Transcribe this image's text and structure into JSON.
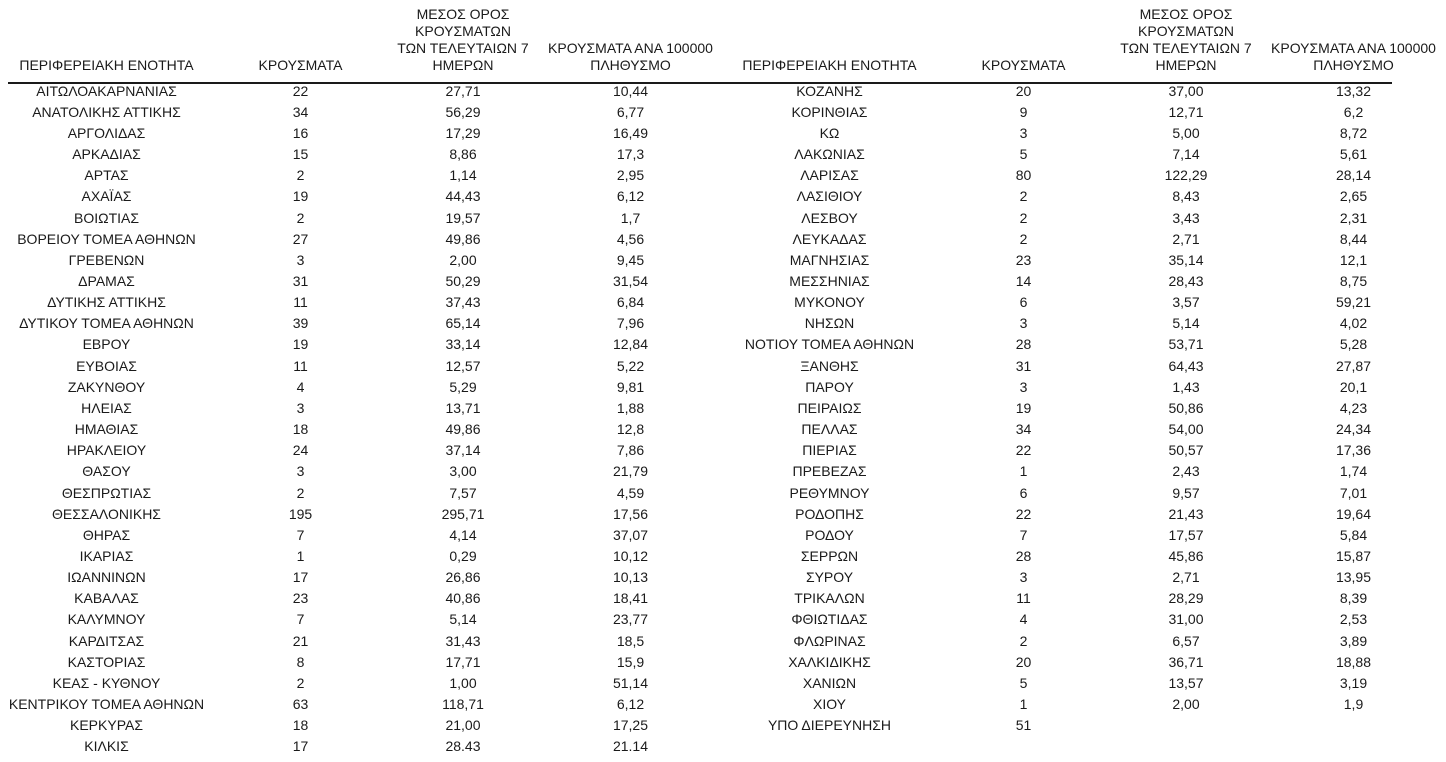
{
  "left_table": {
    "headers": [
      "ΠΕΡΙΦΕΡΕΙΑΚΗ ΕΝΟΤΗΤΑ",
      "ΚΡΟΥΣΜΑΤΑ",
      "ΜΕΣΟΣ ΟΡΟΣ ΚΡΟΥΣΜΑΤΩΝ\nΤΩΝ ΤΕΛΕΥΤΑΙΩΝ 7\nΗΜΕΡΩΝ",
      "ΚΡΟΥΣΜΑΤΑ ΑΝΑ 100000\nΠΛΗΘΥΣΜΟ"
    ],
    "rows": [
      [
        "ΑΙΤΩΛΟΑΚΑΡΝΑΝΙΑΣ",
        "22",
        "27,71",
        "10,44"
      ],
      [
        "ΑΝΑΤΟΛΙΚΗΣ ΑΤΤΙΚΗΣ",
        "34",
        "56,29",
        "6,77"
      ],
      [
        "ΑΡΓΟΛΙΔΑΣ",
        "16",
        "17,29",
        "16,49"
      ],
      [
        "ΑΡΚΑΔΙΑΣ",
        "15",
        "8,86",
        "17,3"
      ],
      [
        "ΑΡΤΑΣ",
        "2",
        "1,14",
        "2,95"
      ],
      [
        "ΑΧΑΪΑΣ",
        "19",
        "44,43",
        "6,12"
      ],
      [
        "ΒΟΙΩΤΙΑΣ",
        "2",
        "19,57",
        "1,7"
      ],
      [
        "ΒΟΡΕΙΟΥ ΤΟΜΕΑ ΑΘΗΝΩΝ",
        "27",
        "49,86",
        "4,56"
      ],
      [
        "ΓΡΕΒΕΝΩΝ",
        "3",
        "2,00",
        "9,45"
      ],
      [
        "ΔΡΑΜΑΣ",
        "31",
        "50,29",
        "31,54"
      ],
      [
        "ΔΥΤΙΚΗΣ ΑΤΤΙΚΗΣ",
        "11",
        "37,43",
        "6,84"
      ],
      [
        "ΔΥΤΙΚΟΥ ΤΟΜΕΑ ΑΘΗΝΩΝ",
        "39",
        "65,14",
        "7,96"
      ],
      [
        "ΕΒΡΟΥ",
        "19",
        "33,14",
        "12,84"
      ],
      [
        "ΕΥΒΟΙΑΣ",
        "11",
        "12,57",
        "5,22"
      ],
      [
        "ΖΑΚΥΝΘΟΥ",
        "4",
        "5,29",
        "9,81"
      ],
      [
        "ΗΛΕΙΑΣ",
        "3",
        "13,71",
        "1,88"
      ],
      [
        "ΗΜΑΘΙΑΣ",
        "18",
        "49,86",
        "12,8"
      ],
      [
        "ΗΡΑΚΛΕΙΟΥ",
        "24",
        "37,14",
        "7,86"
      ],
      [
        "ΘΑΣΟΥ",
        "3",
        "3,00",
        "21,79"
      ],
      [
        "ΘΕΣΠΡΩΤΙΑΣ",
        "2",
        "7,57",
        "4,59"
      ],
      [
        "ΘΕΣΣΑΛΟΝΙΚΗΣ",
        "195",
        "295,71",
        "17,56"
      ],
      [
        "ΘΗΡΑΣ",
        "7",
        "4,14",
        "37,07"
      ],
      [
        "ΙΚΑΡΙΑΣ",
        "1",
        "0,29",
        "10,12"
      ],
      [
        "ΙΩΑΝΝΙΝΩΝ",
        "17",
        "26,86",
        "10,13"
      ],
      [
        "ΚΑΒΑΛΑΣ",
        "23",
        "40,86",
        "18,41"
      ],
      [
        "ΚΑΛΥΜΝΟΥ",
        "7",
        "5,14",
        "23,77"
      ],
      [
        "ΚΑΡΔΙΤΣΑΣ",
        "21",
        "31,43",
        "18,5"
      ],
      [
        "ΚΑΣΤΟΡΙΑΣ",
        "8",
        "17,71",
        "15,9"
      ],
      [
        "ΚΕΑΣ - ΚΥΘΝΟΥ",
        "2",
        "1,00",
        "51,14"
      ],
      [
        "ΚΕΝΤΡΙΚΟΥ ΤΟΜΕΑ ΑΘΗΝΩΝ",
        "63",
        "118,71",
        "6,12"
      ],
      [
        "ΚΕΡΚΥΡΑΣ",
        "18",
        "21,00",
        "17,25"
      ],
      [
        "ΚΙΛΚΙΣ",
        "17",
        "28.43",
        "21.14"
      ]
    ]
  },
  "right_table": {
    "headers": [
      "ΠΕΡΙΦΕΡΕΙΑΚΗ ΕΝΟΤΗΤΑ",
      "ΚΡΟΥΣΜΑΤΑ",
      "ΜΕΣΟΣ ΟΡΟΣ ΚΡΟΥΣΜΑΤΩΝ\nΤΩΝ ΤΕΛΕΥΤΑΙΩΝ 7\nΗΜΕΡΩΝ",
      "ΚΡΟΥΣΜΑΤΑ ΑΝΑ 100000\nΠΛΗΘΥΣΜΟ"
    ],
    "rows": [
      [
        "ΚΟΖΑΝΗΣ",
        "20",
        "37,00",
        "13,32"
      ],
      [
        "ΚΟΡΙΝΘΙΑΣ",
        "9",
        "12,71",
        "6,2"
      ],
      [
        "ΚΩ",
        "3",
        "5,00",
        "8,72"
      ],
      [
        "ΛΑΚΩΝΙΑΣ",
        "5",
        "7,14",
        "5,61"
      ],
      [
        "ΛΑΡΙΣΑΣ",
        "80",
        "122,29",
        "28,14"
      ],
      [
        "ΛΑΣΙΘΙΟΥ",
        "2",
        "8,43",
        "2,65"
      ],
      [
        "ΛΕΣΒΟΥ",
        "2",
        "3,43",
        "2,31"
      ],
      [
        "ΛΕΥΚΑΔΑΣ",
        "2",
        "2,71",
        "8,44"
      ],
      [
        "ΜΑΓΝΗΣΙΑΣ",
        "23",
        "35,14",
        "12,1"
      ],
      [
        "ΜΕΣΣΗΝΙΑΣ",
        "14",
        "28,43",
        "8,75"
      ],
      [
        "ΜΥΚΟΝΟΥ",
        "6",
        "3,57",
        "59,21"
      ],
      [
        "ΝΗΣΩΝ",
        "3",
        "5,14",
        "4,02"
      ],
      [
        "ΝΟΤΙΟΥ ΤΟΜΕΑ ΑΘΗΝΩΝ",
        "28",
        "53,71",
        "5,28"
      ],
      [
        "ΞΑΝΘΗΣ",
        "31",
        "64,43",
        "27,87"
      ],
      [
        "ΠΑΡΟΥ",
        "3",
        "1,43",
        "20,1"
      ],
      [
        "ΠΕΙΡΑΙΩΣ",
        "19",
        "50,86",
        "4,23"
      ],
      [
        "ΠΕΛΛΑΣ",
        "34",
        "54,00",
        "24,34"
      ],
      [
        "ΠΙΕΡΙΑΣ",
        "22",
        "50,57",
        "17,36"
      ],
      [
        "ΠΡΕΒΕΖΑΣ",
        "1",
        "2,43",
        "1,74"
      ],
      [
        "ΡΕΘΥΜΝΟΥ",
        "6",
        "9,57",
        "7,01"
      ],
      [
        "ΡΟΔΟΠΗΣ",
        "22",
        "21,43",
        "19,64"
      ],
      [
        "ΡΟΔΟΥ",
        "7",
        "17,57",
        "5,84"
      ],
      [
        "ΣΕΡΡΩΝ",
        "28",
        "45,86",
        "15,87"
      ],
      [
        "ΣΥΡΟΥ",
        "3",
        "2,71",
        "13,95"
      ],
      [
        "ΤΡΙΚΑΛΩΝ",
        "11",
        "28,29",
        "8,39"
      ],
      [
        "ΦΘΙΩΤΙΔΑΣ",
        "4",
        "31,00",
        "2,53"
      ],
      [
        "ΦΛΩΡΙΝΑΣ",
        "2",
        "6,57",
        "3,89"
      ],
      [
        "ΧΑΛΚΙΔΙΚΗΣ",
        "20",
        "36,71",
        "18,88"
      ],
      [
        "ΧΑΝΙΩΝ",
        "5",
        "13,57",
        "3,19"
      ],
      [
        "ΧΙΟΥ",
        "1",
        "2,00",
        "1,9"
      ],
      [
        "ΥΠΟ ΔΙΕΡΕΥΝΗΣΗ",
        "51",
        "",
        ""
      ]
    ]
  },
  "colors": {
    "text": "#1a1a1a",
    "background": "#ffffff",
    "rule": "#1a1a1a"
  }
}
